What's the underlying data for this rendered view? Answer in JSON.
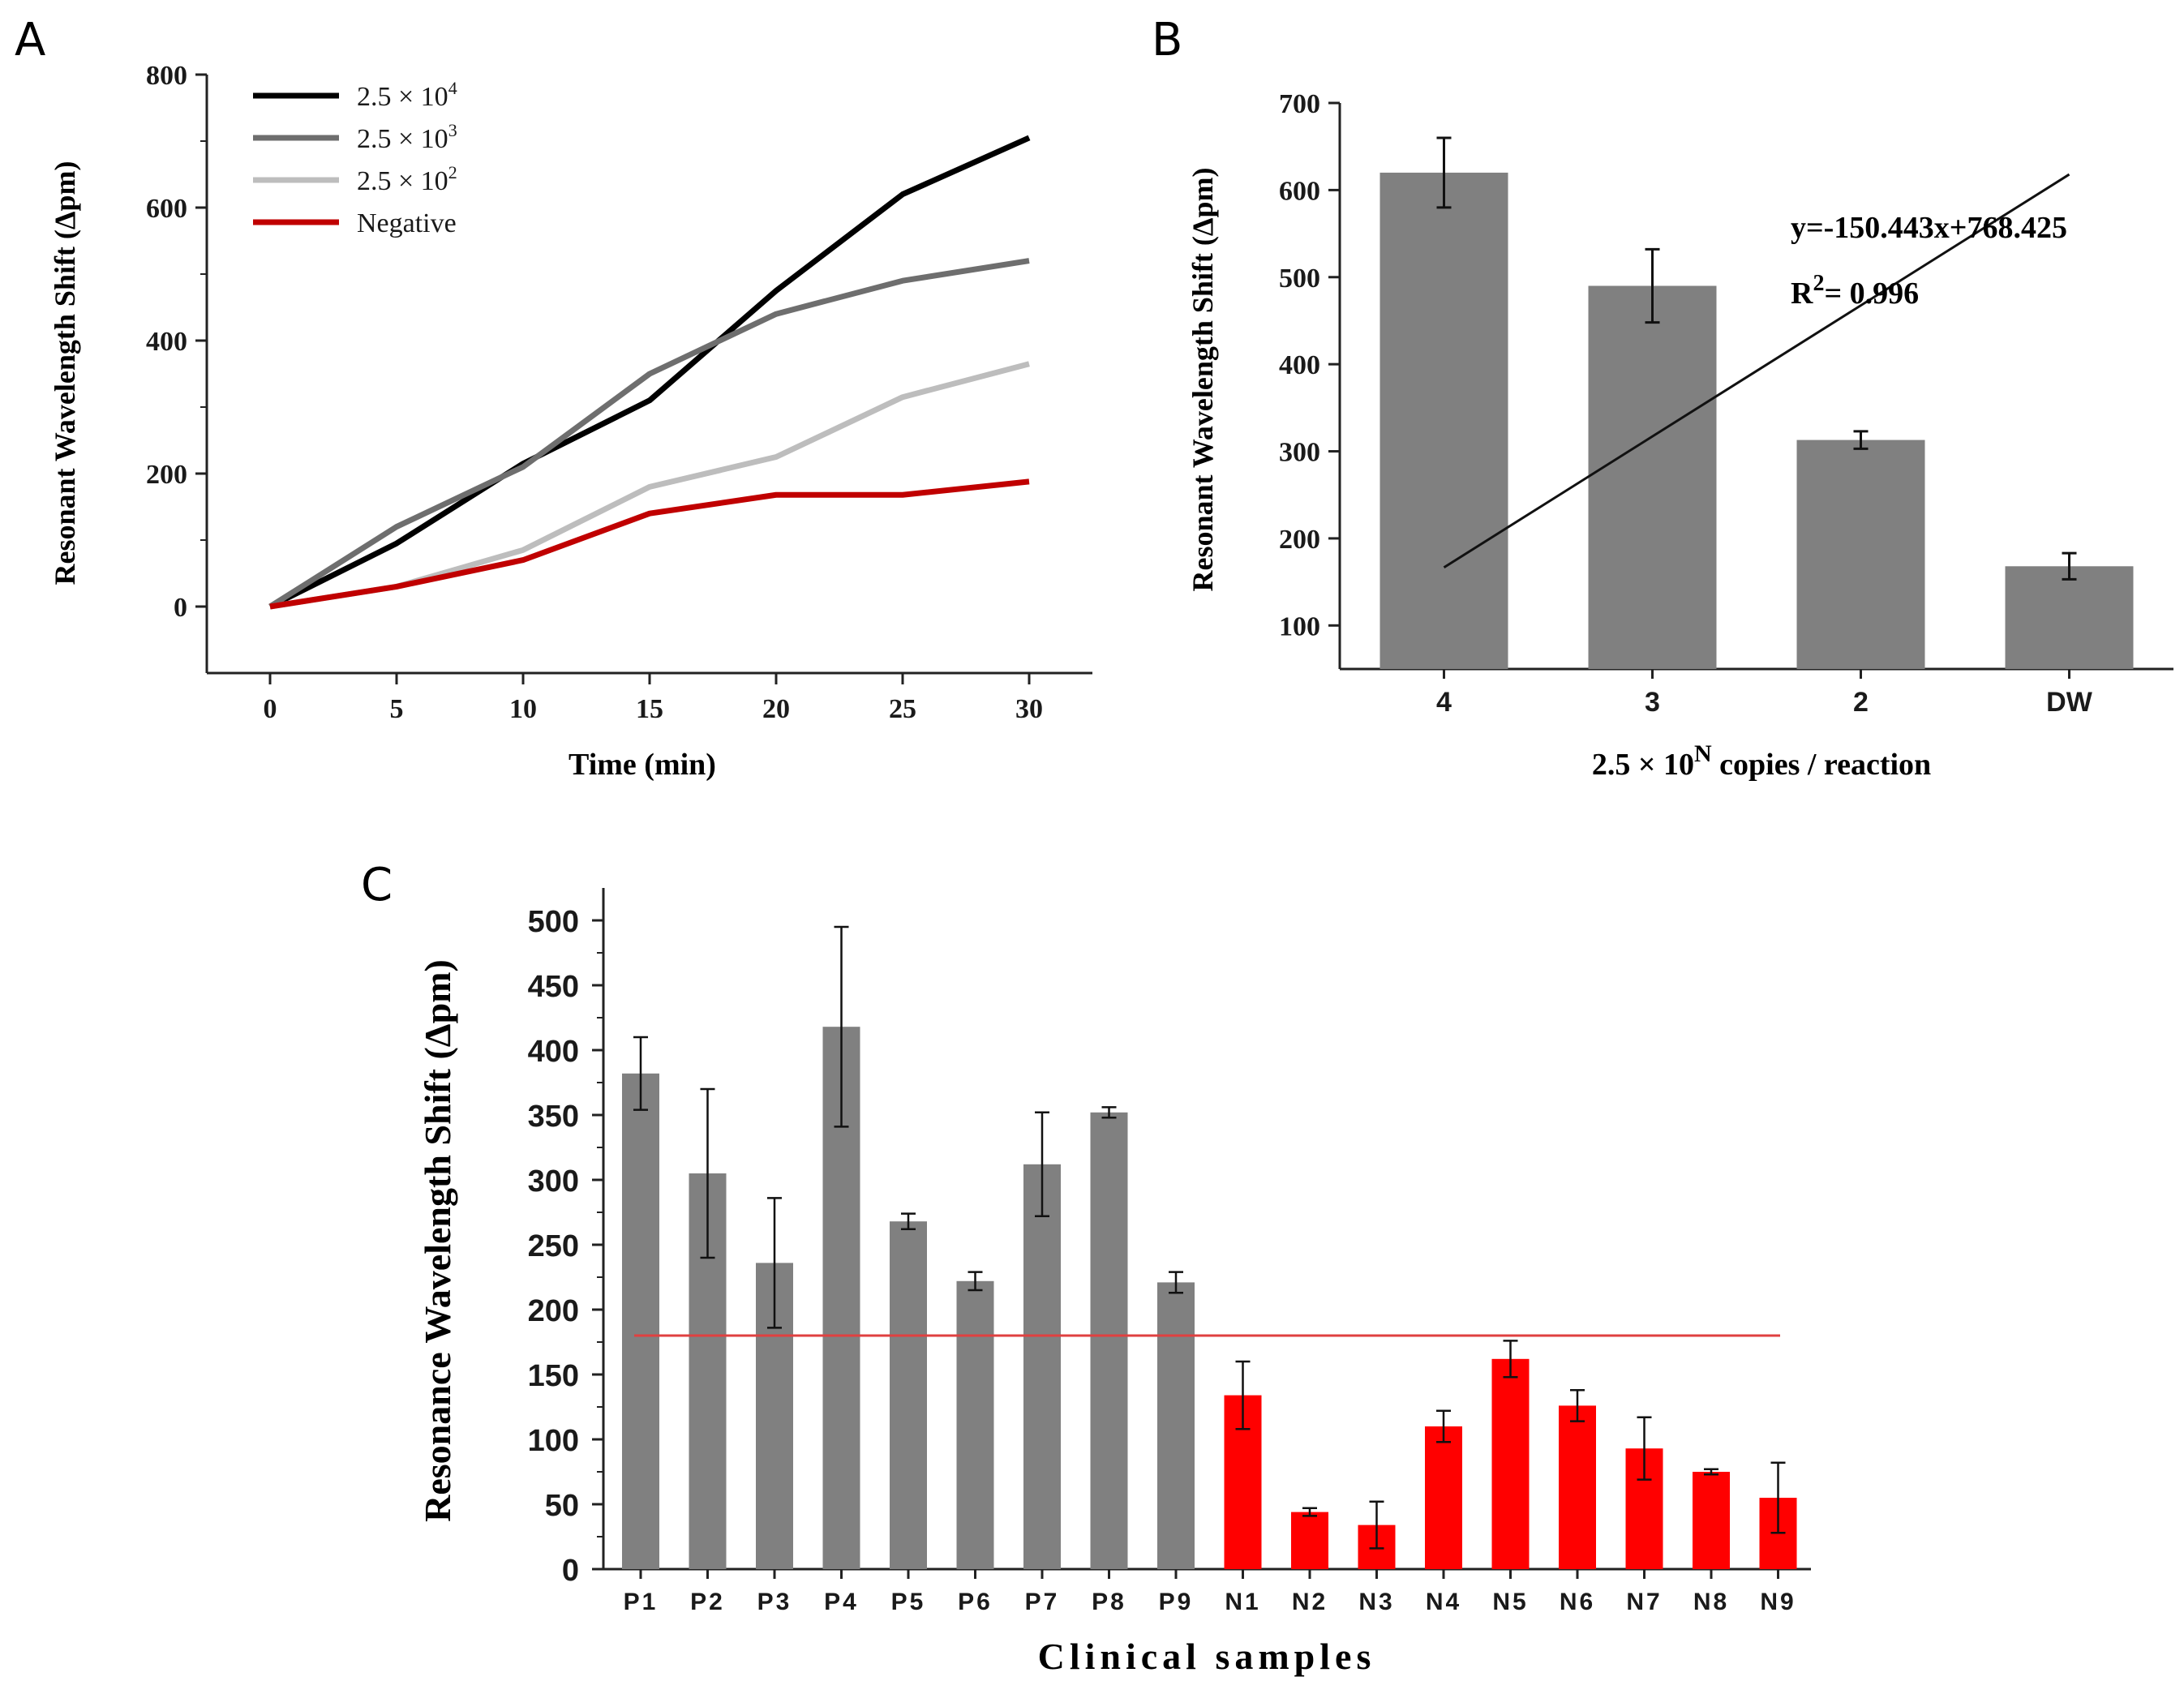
{
  "panels": {
    "a": "A",
    "b": "B",
    "c": "C"
  },
  "chart_data": [
    {
      "panel": "A",
      "type": "line",
      "title": "",
      "xlabel": "Time (min)",
      "ylabel": "Resonant Wavelength Shift (Δpm)",
      "x": [
        0,
        5,
        10,
        15,
        20,
        25,
        30
      ],
      "xlim": [
        -2.5,
        32.5
      ],
      "ylim": [
        -100,
        800
      ],
      "yticks": [
        0,
        200,
        400,
        600,
        800
      ],
      "xticks": [
        0,
        5,
        10,
        15,
        20,
        25,
        30
      ],
      "legend_position": "top-left",
      "series": [
        {
          "name_base": "2.5 × 10",
          "name_exp": "4",
          "color": "#000000",
          "values": [
            0,
            95,
            215,
            310,
            475,
            620,
            705
          ]
        },
        {
          "name_base": "2.5 × 10",
          "name_exp": "3",
          "color": "#6e6e6e",
          "values": [
            0,
            120,
            210,
            350,
            440,
            490,
            520
          ]
        },
        {
          "name_base": "2.5 × 10",
          "name_exp": "2",
          "color": "#bdbdbd",
          "values": [
            0,
            30,
            85,
            180,
            225,
            315,
            365
          ]
        },
        {
          "name_base": "Negative",
          "name_exp": "",
          "color": "#c00000",
          "values": [
            0,
            30,
            70,
            140,
            168,
            168,
            188
          ]
        }
      ]
    },
    {
      "panel": "B",
      "type": "bar",
      "title": "",
      "categories": [
        "4",
        "3",
        "2",
        "DW"
      ],
      "values": [
        620,
        490,
        313,
        168
      ],
      "errors": [
        40,
        42,
        10,
        15
      ],
      "color": "#808080",
      "xlabel_base": "2.5 × 10",
      "xlabel_exp": "N",
      "xlabel_rest": " copies / reaction",
      "ylabel": "Resonant Wavelength Shift (Δpm)",
      "ylim": [
        50,
        700
      ],
      "yticks": [
        100,
        200,
        300,
        400,
        500,
        600,
        700
      ],
      "fit_line": {
        "x_start": 4,
        "x_end": 1,
        "slope": -150.443,
        "intercept": 768.425
      },
      "equation": "y=-150.443x+768.425",
      "r2_base": "R",
      "r2_exp": "2",
      "r2_value": "= 0.996"
    },
    {
      "panel": "C",
      "type": "bar",
      "title": "",
      "categories": [
        "P1",
        "P2",
        "P3",
        "P4",
        "P5",
        "P6",
        "P7",
        "P8",
        "P9",
        "N1",
        "N2",
        "N3",
        "N4",
        "N5",
        "N6",
        "N7",
        "N8",
        "N9"
      ],
      "values": [
        382,
        305,
        236,
        418,
        268,
        222,
        312,
        352,
        221,
        134,
        44,
        34,
        110,
        162,
        126,
        93,
        75,
        55
      ],
      "errors": [
        28,
        65,
        50,
        77,
        6,
        7,
        40,
        4,
        8,
        26,
        3,
        18,
        12,
        14,
        12,
        24,
        2,
        27
      ],
      "colors": {
        "P": "#808080",
        "N": "#ff0000"
      },
      "threshold": 180,
      "threshold_color": "#e04040",
      "xlabel": "Clinical samples",
      "ylabel": "Resonance Wavelength Shift (Δpm)",
      "ylim": [
        0,
        525
      ],
      "yticks": [
        0,
        50,
        100,
        150,
        200,
        250,
        300,
        350,
        400,
        450,
        500
      ]
    }
  ]
}
